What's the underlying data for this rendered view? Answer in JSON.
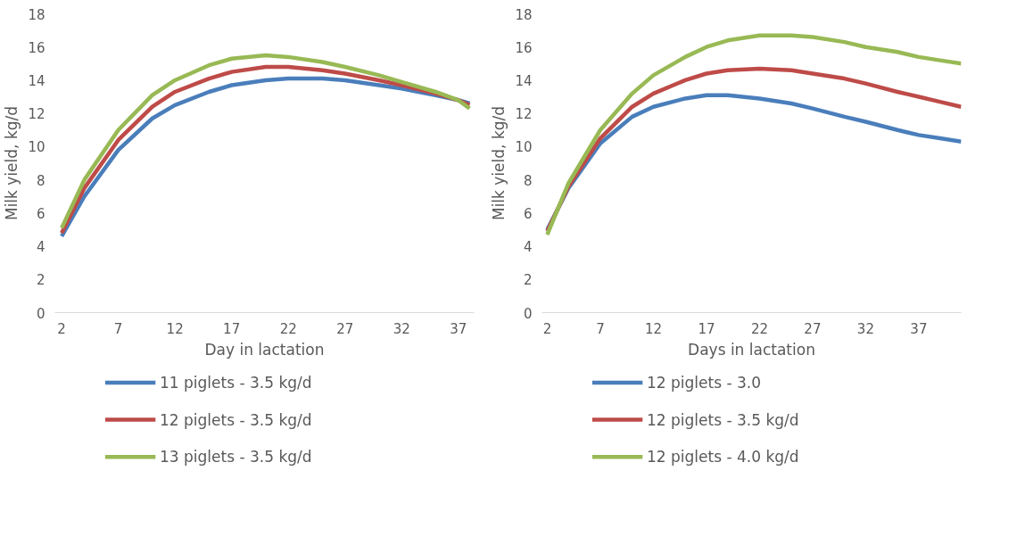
{
  "chart_data": [
    {
      "type": "line",
      "xlabel": "Day in lactation",
      "ylabel": "Milk yield, kg/d",
      "xlim": [
        1.4,
        38.4
      ],
      "xticks": [
        2,
        7,
        12,
        17,
        22,
        27,
        32,
        37
      ],
      "ylim": [
        0,
        18
      ],
      "yticks": [
        0,
        2,
        4,
        6,
        8,
        10,
        12,
        14,
        16,
        18
      ],
      "grid": false,
      "legend": "bottom",
      "marker": "none",
      "line_style": "solid",
      "x": [
        2,
        4,
        7,
        10,
        12,
        15,
        17,
        20,
        22,
        25,
        27,
        30,
        32,
        35,
        37,
        38
      ],
      "series": [
        {
          "name": "11 piglets - 3.5 kg/d",
          "color": "#4a7ebb",
          "values": [
            4.6,
            7.0,
            9.8,
            11.7,
            12.5,
            13.3,
            13.7,
            14.0,
            14.1,
            14.1,
            14.0,
            13.7,
            13.5,
            13.1,
            12.8,
            12.6
          ]
        },
        {
          "name": "12 piglets - 3.5 kg/d",
          "color": "#be4b48",
          "values": [
            4.8,
            7.5,
            10.4,
            12.4,
            13.3,
            14.1,
            14.5,
            14.8,
            14.8,
            14.6,
            14.4,
            14.0,
            13.7,
            13.2,
            12.8,
            12.5
          ]
        },
        {
          "name": "13 piglets - 3.5 kg/d",
          "color": "#98b954",
          "values": [
            5.1,
            8.0,
            11.0,
            13.1,
            14.0,
            14.9,
            15.3,
            15.5,
            15.4,
            15.1,
            14.8,
            14.3,
            13.9,
            13.3,
            12.8,
            12.3
          ]
        }
      ]
    },
    {
      "type": "line",
      "xlabel": "Days in lactation",
      "ylabel": "Milk yield, kg/d",
      "xlim": [
        1.5,
        41
      ],
      "xticks": [
        2,
        7,
        12,
        17,
        22,
        27,
        32,
        37
      ],
      "ylim": [
        0,
        18
      ],
      "yticks": [
        0,
        2,
        4,
        6,
        8,
        10,
        12,
        14,
        16,
        18
      ],
      "grid": false,
      "legend": "bottom",
      "marker": "none",
      "line_style": "solid",
      "x": [
        2,
        4,
        7,
        10,
        12,
        15,
        17,
        19,
        22,
        25,
        27,
        30,
        32,
        35,
        37,
        39,
        41
      ],
      "series": [
        {
          "name": "12 piglets - 3.0",
          "color": "#4a7ebb",
          "values": [
            5.0,
            7.5,
            10.2,
            11.8,
            12.4,
            12.9,
            13.1,
            13.1,
            12.9,
            12.6,
            12.3,
            11.8,
            11.5,
            11.0,
            10.7,
            10.5,
            10.3
          ]
        },
        {
          "name": "12 piglets - 3.5 kg/d",
          "color": "#be4b48",
          "values": [
            4.9,
            7.6,
            10.5,
            12.4,
            13.2,
            14.0,
            14.4,
            14.6,
            14.7,
            14.6,
            14.4,
            14.1,
            13.8,
            13.3,
            13.0,
            12.7,
            12.4
          ]
        },
        {
          "name": "12 piglets - 4.0 kg/d",
          "color": "#98b954",
          "values": [
            4.7,
            7.8,
            11.0,
            13.2,
            14.3,
            15.4,
            16.0,
            16.4,
            16.7,
            16.7,
            16.6,
            16.3,
            16.0,
            15.7,
            15.4,
            15.2,
            15.0
          ]
        }
      ]
    }
  ]
}
